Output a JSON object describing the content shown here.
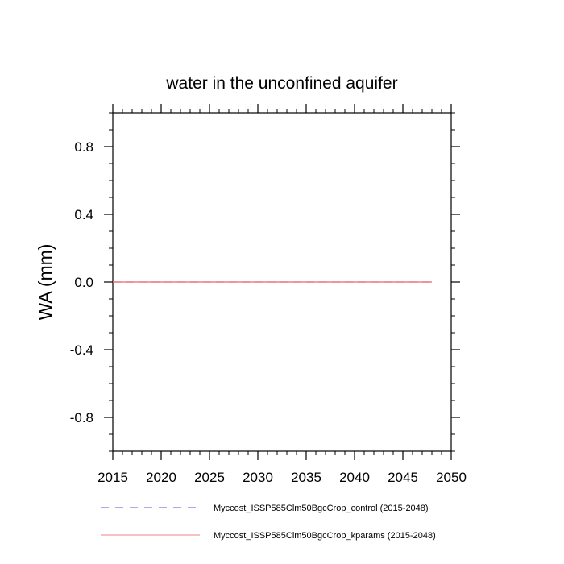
{
  "chart_data": {
    "type": "line",
    "title": "water in the unconfined aquifer",
    "xlabel": "",
    "ylabel": "WA  (mm)",
    "xlim": [
      2015,
      2050
    ],
    "ylim": [
      -1.0,
      1.0
    ],
    "x_ticks": [
      2015,
      2020,
      2025,
      2030,
      2035,
      2040,
      2045,
      2050
    ],
    "x_tick_labels": [
      "2015",
      "2020",
      "2025",
      "2030",
      "2035",
      "2040",
      "2045",
      "2050"
    ],
    "y_ticks": [
      -0.8,
      -0.4,
      0.0,
      0.4,
      0.8
    ],
    "y_tick_labels": [
      "-0.8",
      "-0.4",
      "0.0",
      "0.4",
      "0.8"
    ],
    "grid": false,
    "legend_position": "bottom",
    "series": [
      {
        "name": "Myccost_ISSP585Clm50BgcCrop_control (2015-2048)",
        "color": "#5555dd",
        "dash": "dashed",
        "x": [
          2015,
          2048
        ],
        "y": [
          0.0,
          0.0
        ]
      },
      {
        "name": "Myccost_ISSP585Clm50BgcCrop_kparams (2015-2048)",
        "color": "#f08080",
        "dash": "solid",
        "x": [
          2015,
          2048
        ],
        "y": [
          0.0,
          0.0
        ]
      }
    ]
  }
}
